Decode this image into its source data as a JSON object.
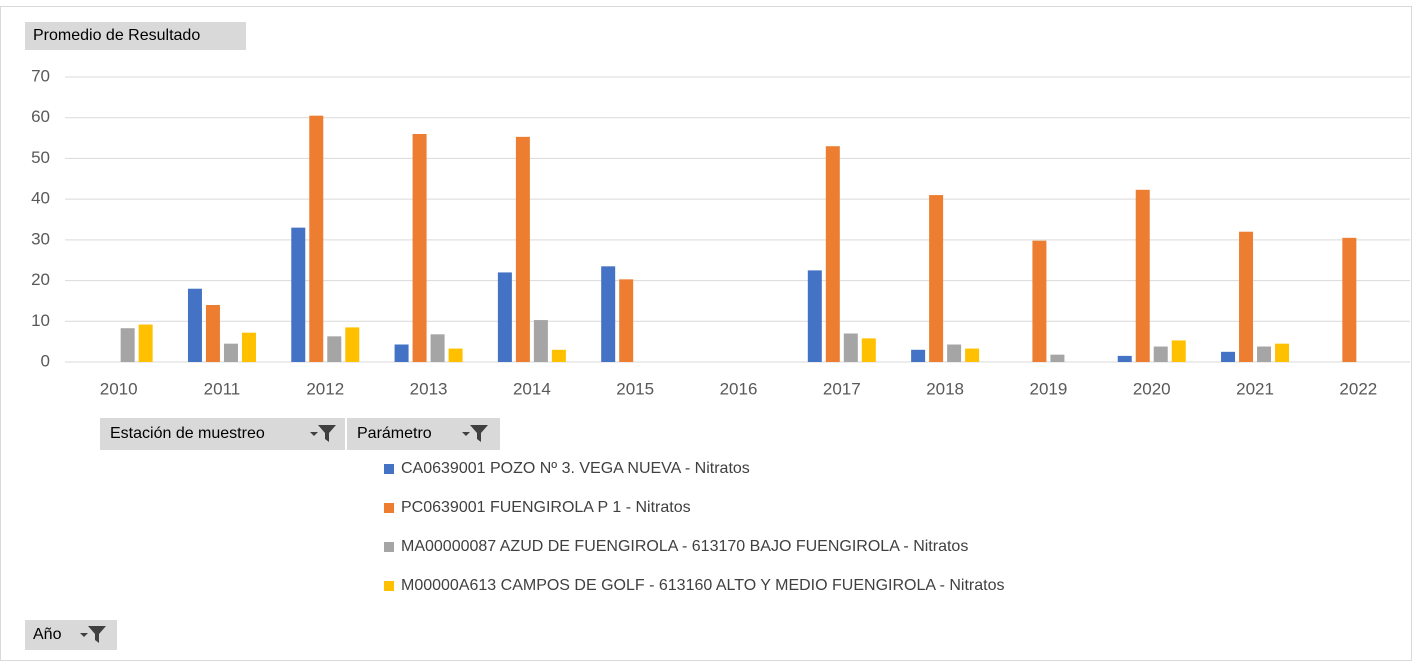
{
  "chart_data": {
    "type": "bar",
    "value_field_button": "Promedio de  Resultado",
    "legend_field_buttons": [
      "Estación de muestreo",
      "Parámetro"
    ],
    "axis_field_button": "Año",
    "categories": [
      "2010",
      "2011",
      "2012",
      "2013",
      "2014",
      "2015",
      "2016",
      "2017",
      "2018",
      "2019",
      "2020",
      "2021",
      "2022"
    ],
    "series": [
      {
        "name": "CA0639001 POZO Nº 3. VEGA NUEVA - Nitratos",
        "color": "#4472c4",
        "values": [
          null,
          18,
          33,
          4.3,
          22,
          23.5,
          null,
          22.5,
          3,
          null,
          1.5,
          2.5,
          null
        ]
      },
      {
        "name": "PC0639001 FUENGIROLA P 1 - Nitratos",
        "color": "#ed7d31",
        "values": [
          null,
          14,
          60.5,
          56,
          55.3,
          20.3,
          null,
          53,
          41,
          29.8,
          42.3,
          32,
          30.5
        ]
      },
      {
        "name": "MA00000087 AZUD DE FUENGIROLA - 613170 BAJO FUENGIROLA - Nitratos",
        "color": "#a5a5a5",
        "values": [
          8.3,
          4.5,
          6.3,
          6.8,
          10.3,
          null,
          null,
          7,
          4.3,
          1.8,
          3.8,
          3.8,
          null
        ]
      },
      {
        "name": "M00000A613 CAMPOS DE GOLF - 613160 ALTO Y MEDIO FUENGIROLA - Nitratos",
        "color": "#ffc000",
        "values": [
          9.2,
          7.2,
          8.5,
          3.3,
          3,
          null,
          null,
          5.8,
          3.3,
          null,
          5.3,
          4.5,
          null
        ]
      }
    ],
    "ylim": [
      0,
      70
    ],
    "yticks": [
      0,
      10,
      20,
      30,
      40,
      50,
      60,
      70
    ],
    "grid": true
  }
}
